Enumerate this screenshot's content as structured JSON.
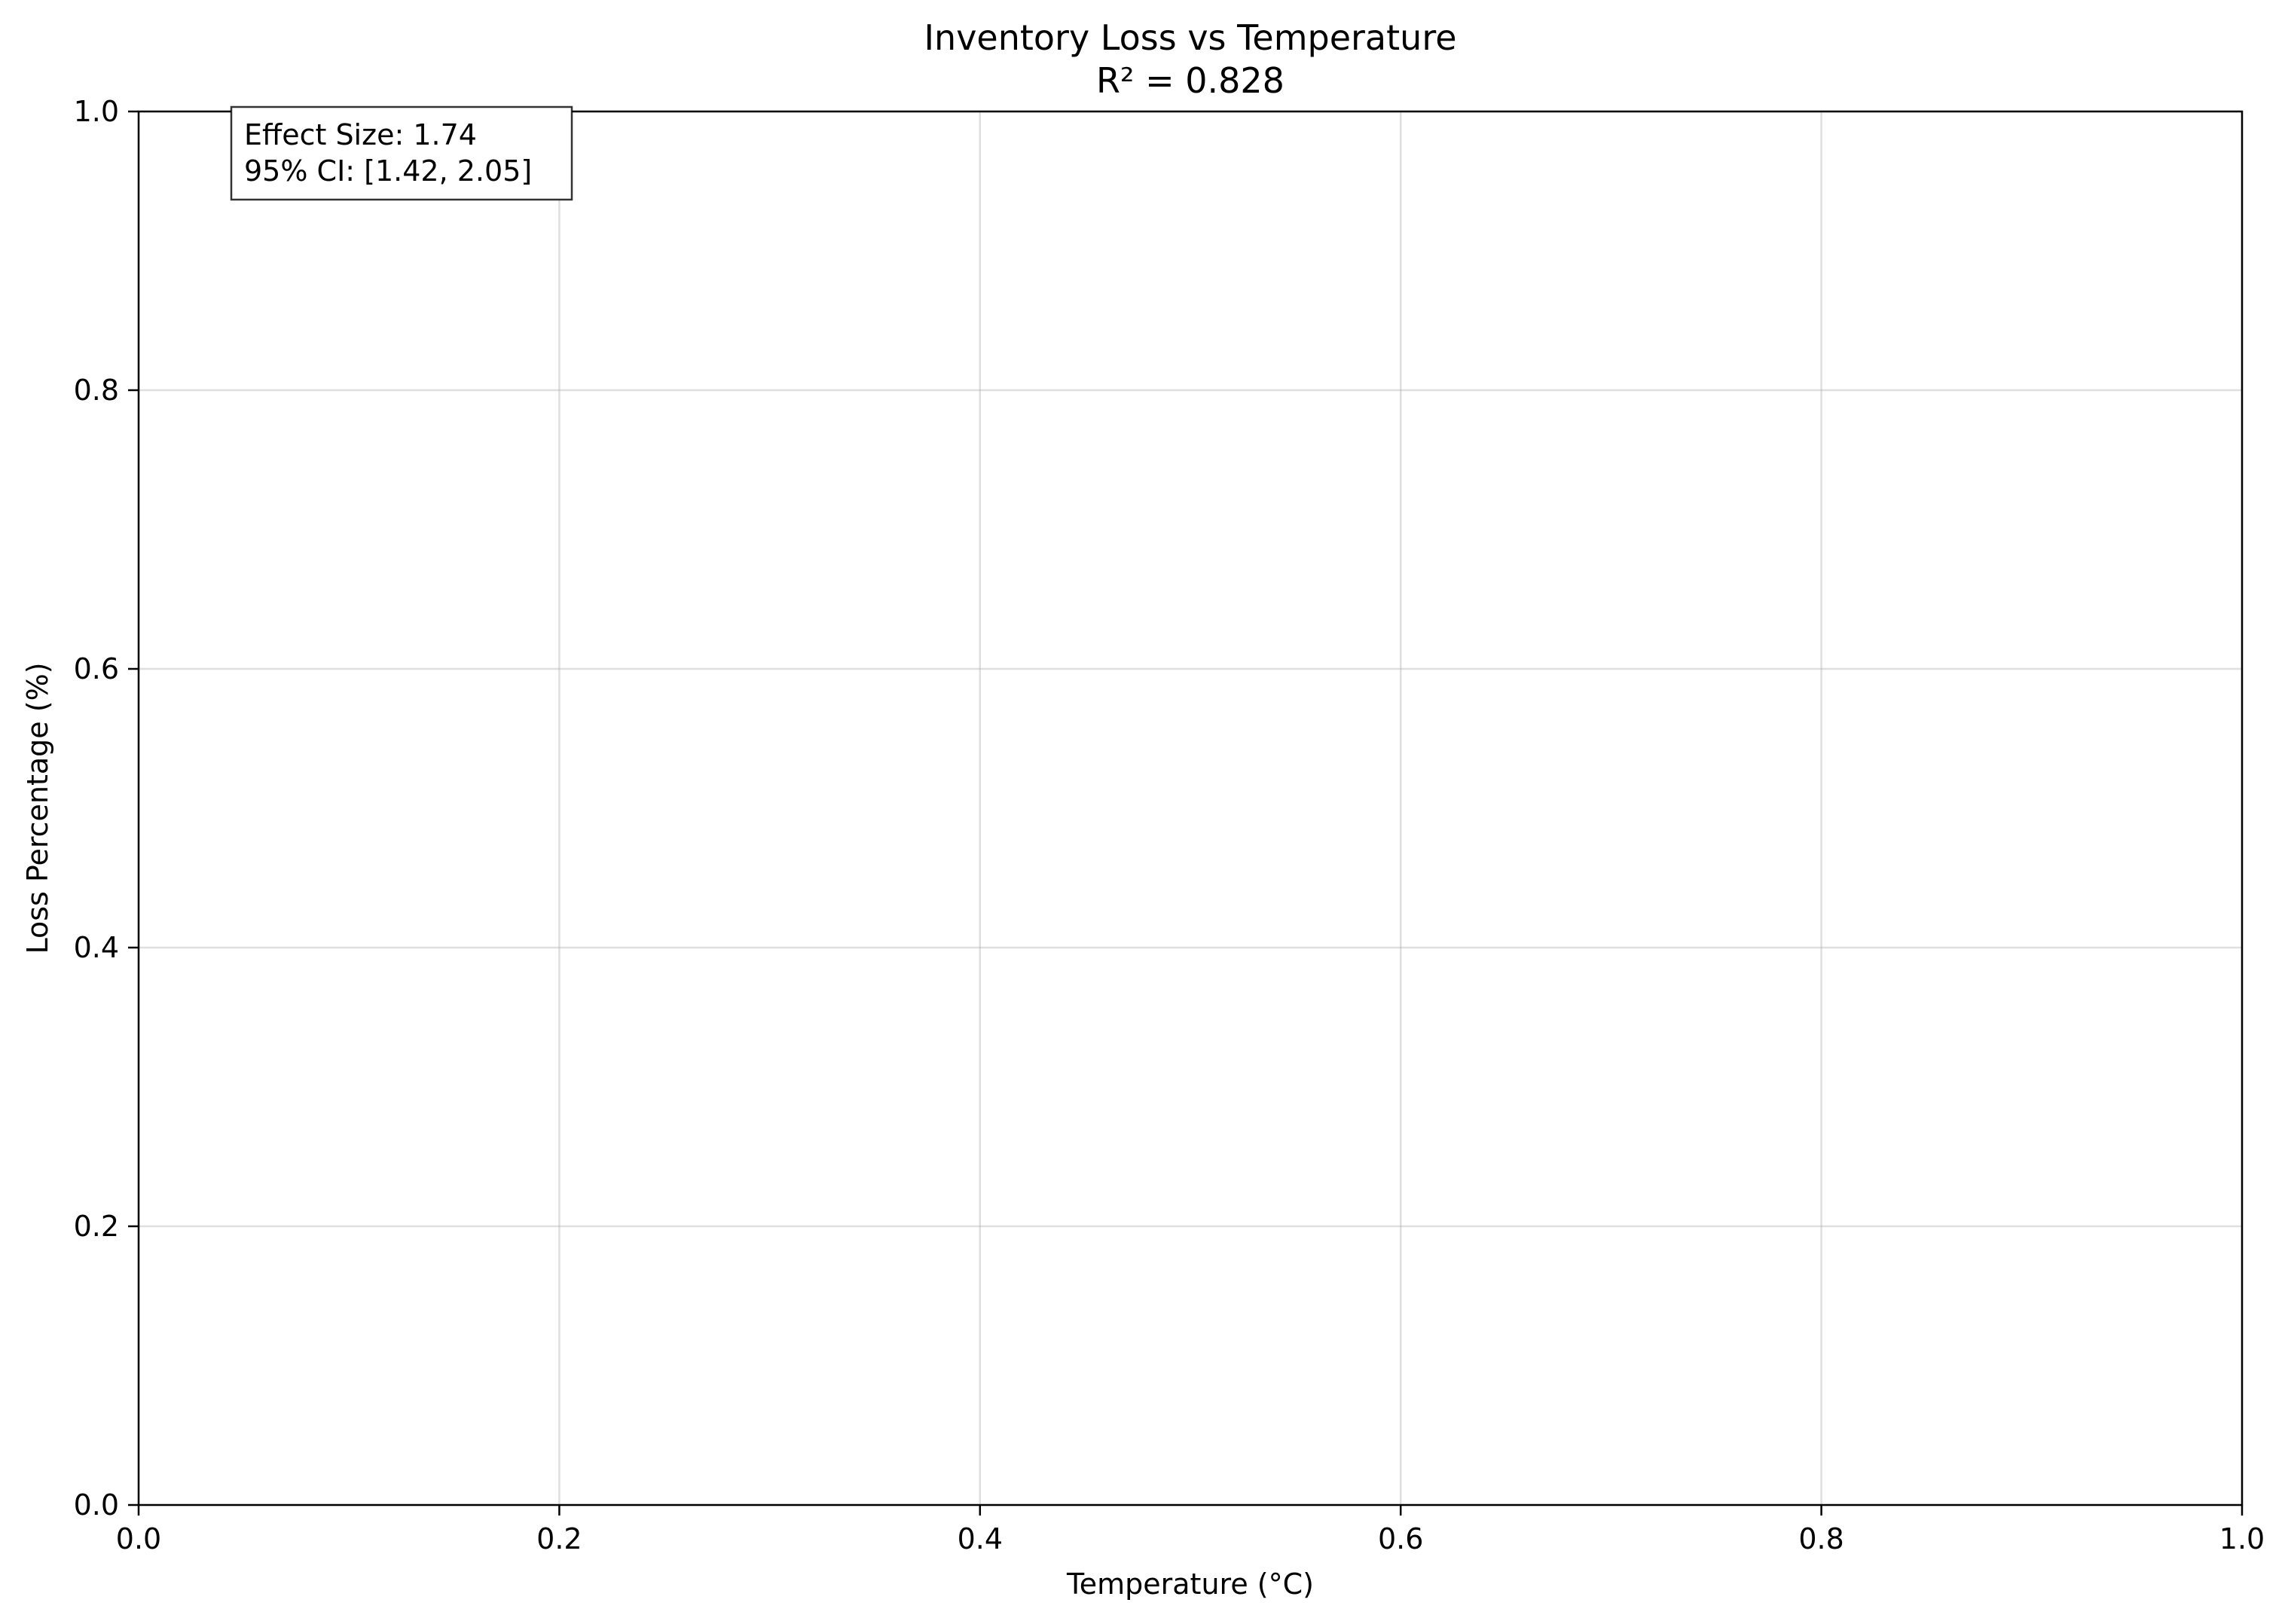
{
  "chart_data": {
    "type": "scatter",
    "title": "Inventory Loss vs Temperature",
    "subtitle": "R² = 0.828",
    "xlabel": "Temperature (°C)",
    "ylabel": "Loss Percentage (%)",
    "xlim": [
      0.0,
      1.0
    ],
    "ylim": [
      0.0,
      1.0
    ],
    "x_ticks": [
      "0.0",
      "0.2",
      "0.4",
      "0.6",
      "0.8",
      "1.0"
    ],
    "y_ticks": [
      "0.0",
      "0.2",
      "0.4",
      "0.6",
      "0.8",
      "1.0"
    ],
    "grid": true,
    "series": [],
    "annotation": {
      "lines": [
        "Effect Size: 1.74",
        "95% CI: [1.42, 2.05]"
      ],
      "placement": "top-left"
    }
  }
}
